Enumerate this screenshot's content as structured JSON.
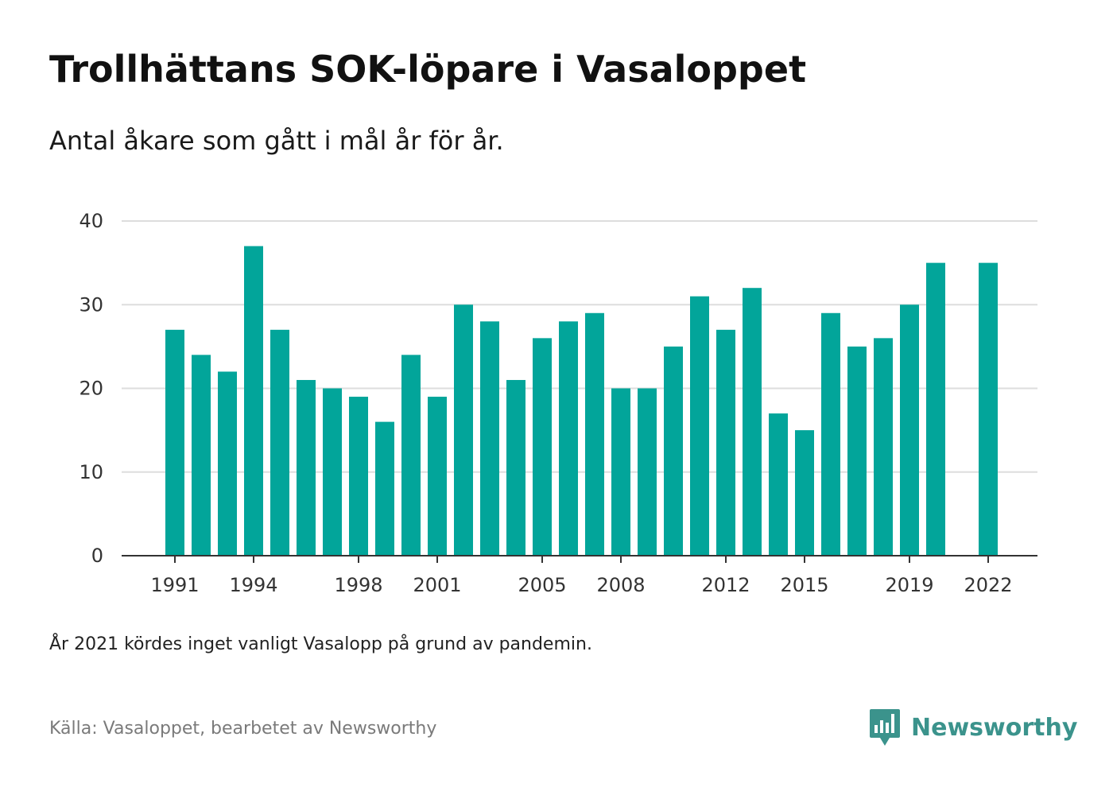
{
  "header": {
    "title": "Trollhättans SOK-löpare i Vasaloppet",
    "subtitle": "Antal åkare som gått i mål år för år."
  },
  "footer": {
    "note": "År 2021 kördes inget vanligt Vasalopp på grund av pandemin.",
    "source": "Källa: Vasaloppet, bearbetet av Newsworthy",
    "brand": "Newsworthy",
    "brand_icon": "newsworthy-bars-icon"
  },
  "colors": {
    "bar": "#02a59a",
    "gridline": "#dddddd",
    "baseline": "#333333",
    "brand": "#3b938c"
  },
  "chart_data": {
    "type": "bar",
    "title": "Trollhättans SOK-löpare i Vasaloppet",
    "subtitle": "Antal åkare som gått i mål år för år.",
    "xlabel": "",
    "ylabel": "",
    "ylim": [
      0,
      40
    ],
    "yticks": [
      "0",
      "10",
      "20",
      "30",
      "40"
    ],
    "grid": true,
    "legend": "none",
    "x": [
      1991,
      1992,
      1993,
      1994,
      1995,
      1996,
      1997,
      1998,
      1999,
      2000,
      2001,
      2002,
      2003,
      2004,
      2005,
      2006,
      2007,
      2008,
      2009,
      2010,
      2011,
      2012,
      2013,
      2014,
      2015,
      2016,
      2017,
      2018,
      2019,
      2020,
      2021,
      2022
    ],
    "values": [
      27,
      24,
      22,
      37,
      27,
      21,
      20,
      19,
      16,
      24,
      19,
      30,
      28,
      21,
      26,
      28,
      29,
      20,
      20,
      25,
      31,
      27,
      32,
      17,
      15,
      29,
      25,
      26,
      30,
      35,
      null,
      35
    ],
    "xtick_labels": [
      "1991",
      "1994",
      "1998",
      "2001",
      "2005",
      "2008",
      "2012",
      "2015",
      "2019",
      "2022"
    ]
  }
}
